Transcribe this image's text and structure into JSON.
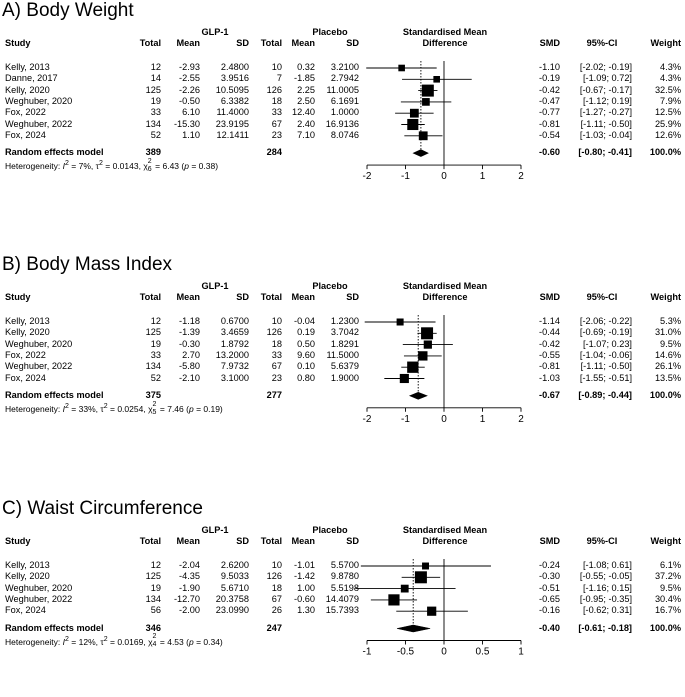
{
  "chart_data": [
    {
      "type": "forest",
      "title": "A) Body Weight",
      "headers": {
        "grp1": "GLP-1",
        "grp2": "Placebo",
        "study": "Study",
        "total1": "Total",
        "mean1": "Mean",
        "sd1": "SD",
        "total2": "Total",
        "mean2": "Mean",
        "sd2": "SD",
        "smd_head1": "Standardised Mean",
        "smd_head2": "Difference",
        "smd": "SMD",
        "ci": "95%-CI",
        "weight": "Weight"
      },
      "xlim": [
        -2,
        2
      ],
      "ticks": [
        {
          "v": -2,
          "label": "-2"
        },
        {
          "v": -1,
          "label": "-1"
        },
        {
          "v": 0,
          "label": "0"
        },
        {
          "v": 1,
          "label": "1"
        },
        {
          "v": 2,
          "label": "2"
        }
      ],
      "clip": [
        -2.3,
        2.3
      ],
      "studies": [
        {
          "study": "Kelly, 2013",
          "n1": "12",
          "m1": "-2.93",
          "sd1": "2.4800",
          "n2": "10",
          "m2": "0.32",
          "sd2": "3.2100",
          "smd": "-1.10",
          "ci": "[-2.02; -0.19]",
          "weight": "4.3%",
          "est": -1.1,
          "lo": -2.02,
          "hi": -0.19,
          "w": 4.3
        },
        {
          "study": "Danne, 2017",
          "n1": "14",
          "m1": "-2.55",
          "sd1": "3.9516",
          "n2": "7",
          "m2": "-1.85",
          "sd2": "2.7942",
          "smd": "-0.19",
          "ci": "[-1.09; 0.72]",
          "weight": "4.3%",
          "est": -0.19,
          "lo": -1.09,
          "hi": 0.72,
          "w": 4.3
        },
        {
          "study": "Kelly, 2020",
          "n1": "125",
          "m1": "-2.26",
          "sd1": "10.5095",
          "n2": "126",
          "m2": "2.25",
          "sd2": "11.0005",
          "smd": "-0.42",
          "ci": "[-0.67; -0.17]",
          "weight": "32.5%",
          "est": -0.42,
          "lo": -0.67,
          "hi": -0.17,
          "w": 32.5
        },
        {
          "study": "Weghuber, 2020",
          "n1": "19",
          "m1": "-0.50",
          "sd1": "6.3382",
          "n2": "18",
          "m2": "2.50",
          "sd2": "6.1691",
          "smd": "-0.47",
          "ci": "[-1.12; 0.19]",
          "weight": "7.9%",
          "est": -0.47,
          "lo": -1.12,
          "hi": 0.19,
          "w": 7.9
        },
        {
          "study": "Fox, 2022",
          "n1": "33",
          "m1": "6.10",
          "sd1": "11.4000",
          "n2": "33",
          "m2": "12.40",
          "sd2": "1.0000",
          "smd": "-0.77",
          "ci": "[-1.27; -0.27]",
          "weight": "12.5%",
          "est": -0.77,
          "lo": -1.27,
          "hi": -0.27,
          "w": 12.5
        },
        {
          "study": "Weghuber, 2022",
          "n1": "134",
          "m1": "-15.30",
          "sd1": "23.9195",
          "n2": "67",
          "m2": "2.40",
          "sd2": "16.9136",
          "smd": "-0.81",
          "ci": "[-1.11; -0.50]",
          "weight": "25.9%",
          "est": -0.81,
          "lo": -1.11,
          "hi": -0.5,
          "w": 25.9
        },
        {
          "study": "Fox, 2024",
          "n1": "52",
          "m1": "1.10",
          "sd1": "12.1411",
          "n2": "23",
          "m2": "7.10",
          "sd2": "8.0746",
          "smd": "-0.54",
          "ci": "[-1.03; -0.04]",
          "weight": "12.6%",
          "est": -0.54,
          "lo": -1.03,
          "hi": -0.04,
          "w": 12.6
        }
      ],
      "overall": {
        "label": "Random effects model",
        "n1": "389",
        "n2": "284",
        "smd": "-0.60",
        "ci": "[-0.80; -0.41]",
        "weight": "100.0%",
        "est": -0.6,
        "lo": -0.8,
        "hi": -0.41
      },
      "heterogeneity": {
        "prefix": "Heterogeneity: ",
        "i2": "I",
        "i2_val": " = 7%, ",
        "tau": "τ",
        "tau_val": " = 0.0143, ",
        "chi": "χ",
        "df": "6",
        "chi_val": " = 6.43 (",
        "p": "p",
        "p_val": " = 0.38)"
      }
    },
    {
      "type": "forest",
      "title": "B) Body Mass Index",
      "headers": {
        "grp1": "GLP-1",
        "grp2": "Placebo",
        "study": "Study",
        "total1": "Total",
        "mean1": "Mean",
        "sd1": "SD",
        "total2": "Total",
        "mean2": "Mean",
        "sd2": "SD",
        "smd_head1": "Standardised Mean",
        "smd_head2": "Difference",
        "smd": "SMD",
        "ci": "95%-CI",
        "weight": "Weight"
      },
      "xlim": [
        -2,
        2
      ],
      "ticks": [
        {
          "v": -2,
          "label": "-2"
        },
        {
          "v": -1,
          "label": "-1"
        },
        {
          "v": 0,
          "label": "0"
        },
        {
          "v": 1,
          "label": "1"
        },
        {
          "v": 2,
          "label": "2"
        }
      ],
      "clip": [
        -2.3,
        2.3
      ],
      "studies": [
        {
          "study": "Kelly, 2013",
          "n1": "12",
          "m1": "-1.18",
          "sd1": "0.6700",
          "n2": "10",
          "m2": "-0.04",
          "sd2": "1.2300",
          "smd": "-1.14",
          "ci": "[-2.06; -0.22]",
          "weight": "5.3%",
          "est": -1.14,
          "lo": -2.06,
          "hi": -0.22,
          "w": 5.3
        },
        {
          "study": "Kelly, 2020",
          "n1": "125",
          "m1": "-1.39",
          "sd1": "3.4659",
          "n2": "126",
          "m2": "0.19",
          "sd2": "3.7042",
          "smd": "-0.44",
          "ci": "[-0.69; -0.19]",
          "weight": "31.0%",
          "est": -0.44,
          "lo": -0.69,
          "hi": -0.19,
          "w": 31.0
        },
        {
          "study": "Weghuber, 2020",
          "n1": "19",
          "m1": "-0.30",
          "sd1": "1.8792",
          "n2": "18",
          "m2": "0.50",
          "sd2": "1.8291",
          "smd": "-0.42",
          "ci": "[-1.07; 0.23]",
          "weight": "9.5%",
          "est": -0.42,
          "lo": -1.07,
          "hi": 0.23,
          "w": 9.5
        },
        {
          "study": "Fox, 2022",
          "n1": "33",
          "m1": "2.70",
          "sd1": "13.2000",
          "n2": "33",
          "m2": "9.60",
          "sd2": "11.5000",
          "smd": "-0.55",
          "ci": "[-1.04; -0.06]",
          "weight": "14.6%",
          "est": -0.55,
          "lo": -1.04,
          "hi": -0.06,
          "w": 14.6
        },
        {
          "study": "Weghuber, 2022",
          "n1": "134",
          "m1": "-5.80",
          "sd1": "7.9732",
          "n2": "67",
          "m2": "0.10",
          "sd2": "5.6379",
          "smd": "-0.81",
          "ci": "[-1.11; -0.50]",
          "weight": "26.1%",
          "est": -0.81,
          "lo": -1.11,
          "hi": -0.5,
          "w": 26.1
        },
        {
          "study": "Fox, 2024",
          "n1": "52",
          "m1": "-2.10",
          "sd1": "3.1000",
          "n2": "23",
          "m2": "0.80",
          "sd2": "1.9000",
          "smd": "-1.03",
          "ci": "[-1.55; -0.51]",
          "weight": "13.5%",
          "est": -1.03,
          "lo": -1.55,
          "hi": -0.51,
          "w": 13.5
        }
      ],
      "overall": {
        "label": "Random effects model",
        "n1": "375",
        "n2": "277",
        "smd": "-0.67",
        "ci": "[-0.89; -0.44]",
        "weight": "100.0%",
        "est": -0.67,
        "lo": -0.89,
        "hi": -0.44
      },
      "heterogeneity": {
        "prefix": "Heterogeneity: ",
        "i2": "I",
        "i2_val": " = 33%, ",
        "tau": "τ",
        "tau_val": " = 0.0254, ",
        "chi": "χ",
        "df": "5",
        "chi_val": " = 7.46 (",
        "p": "p",
        "p_val": " = 0.19)"
      }
    },
    {
      "type": "forest",
      "title": "C) Waist Circumference",
      "headers": {
        "grp1": "GLP-1",
        "grp2": "Placebo",
        "study": "Study",
        "total1": "Total",
        "mean1": "Mean",
        "sd1": "SD",
        "total2": "Total",
        "mean2": "Mean",
        "sd2": "SD",
        "smd_head1": "Standardised Mean",
        "smd_head2": "Difference",
        "smd": "SMD",
        "ci": "95%-CI",
        "weight": "Weight"
      },
      "xlim": [
        -1,
        1
      ],
      "ticks": [
        {
          "v": -1,
          "label": "-1"
        },
        {
          "v": -0.5,
          "label": "-0.5"
        },
        {
          "v": 0,
          "label": "0"
        },
        {
          "v": 0.5,
          "label": "0.5"
        },
        {
          "v": 1,
          "label": "1"
        }
      ],
      "clip": [
        -1.15,
        1.15
      ],
      "studies": [
        {
          "study": "Kelly, 2013",
          "n1": "12",
          "m1": "-2.04",
          "sd1": "2.6200",
          "n2": "10",
          "m2": "-1.01",
          "sd2": "5.5700",
          "smd": "-0.24",
          "ci": "[-1.08; 0.61]",
          "weight": "6.1%",
          "est": -0.24,
          "lo": -1.08,
          "hi": 0.61,
          "w": 6.1
        },
        {
          "study": "Kelly, 2020",
          "n1": "125",
          "m1": "-4.35",
          "sd1": "9.5033",
          "n2": "126",
          "m2": "-1.42",
          "sd2": "9.8780",
          "smd": "-0.30",
          "ci": "[-0.55; -0.05]",
          "weight": "37.2%",
          "est": -0.3,
          "lo": -0.55,
          "hi": -0.05,
          "w": 37.2
        },
        {
          "study": "Weghuber, 2020",
          "n1": "19",
          "m1": "-1.90",
          "sd1": "5.6710",
          "n2": "18",
          "m2": "1.00",
          "sd2": "5.5198",
          "smd": "-0.51",
          "ci": "[-1.16; 0.15]",
          "weight": "9.5%",
          "est": -0.51,
          "lo": -1.16,
          "hi": 0.15,
          "w": 9.5
        },
        {
          "study": "Weghuber, 2022",
          "n1": "134",
          "m1": "-12.70",
          "sd1": "20.3758",
          "n2": "67",
          "m2": "-0.60",
          "sd2": "14.4079",
          "smd": "-0.65",
          "ci": "[-0.95; -0.35]",
          "weight": "30.4%",
          "est": -0.65,
          "lo": -0.95,
          "hi": -0.35,
          "w": 30.4
        },
        {
          "study": "Fox, 2024",
          "n1": "56",
          "m1": "-2.00",
          "sd1": "23.0990",
          "n2": "26",
          "m2": "1.30",
          "sd2": "15.7393",
          "smd": "-0.16",
          "ci": "[-0.62; 0.31]",
          "weight": "16.7%",
          "est": -0.16,
          "lo": -0.62,
          "hi": 0.31,
          "w": 16.7
        }
      ],
      "overall": {
        "label": "Random effects model",
        "n1": "346",
        "n2": "247",
        "smd": "-0.40",
        "ci": "[-0.61; -0.18]",
        "weight": "100.0%",
        "est": -0.4,
        "lo": -0.61,
        "hi": -0.18
      },
      "heterogeneity": {
        "prefix": "Heterogeneity: ",
        "i2": "I",
        "i2_val": " = 12%, ",
        "tau": "τ",
        "tau_val": " = 0.0169, ",
        "chi": "χ",
        "df": "4",
        "chi_val": " = 4.53 (",
        "p": "p",
        "p_val": " = 0.34)"
      }
    }
  ]
}
